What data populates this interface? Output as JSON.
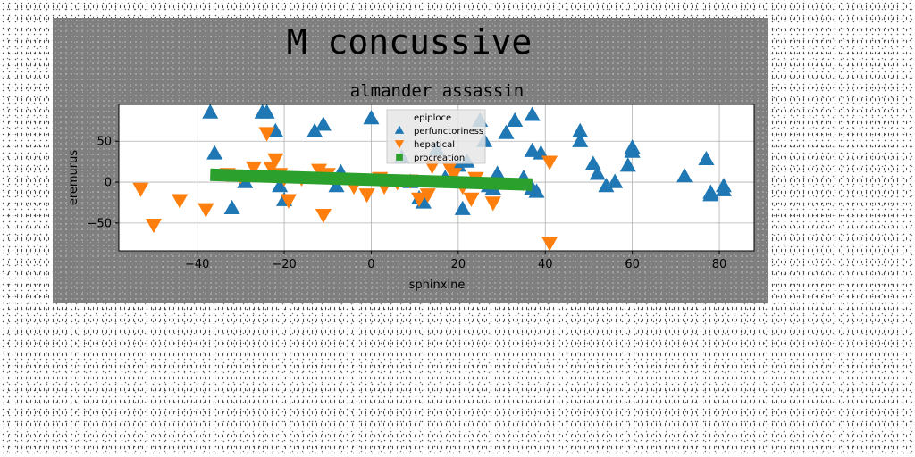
{
  "chart_data": {
    "type": "scatter",
    "suptitle": "M concussive",
    "title": "almander assassin",
    "xlabel": "sphinxine",
    "ylabel": "eremurus",
    "xlim": [
      -58,
      88
    ],
    "ylim": [
      -84,
      95
    ],
    "xticks": [
      -40,
      -20,
      0,
      20,
      40,
      60,
      80
    ],
    "yticks": [
      -50,
      0,
      50
    ],
    "grid": true,
    "legend_position": "upper center",
    "series": [
      {
        "name": "epiploce",
        "marker": "none",
        "color": "",
        "points": []
      },
      {
        "name": "perfunctoriness",
        "marker": "triangle-up",
        "color": "#1f77b4",
        "points": [
          [
            -37,
            85
          ],
          [
            -36,
            35
          ],
          [
            -29,
            0
          ],
          [
            -25,
            85
          ],
          [
            -24,
            85
          ],
          [
            -22,
            62
          ],
          [
            -21,
            -5
          ],
          [
            -20,
            -22
          ],
          [
            -32,
            -32
          ],
          [
            -13,
            62
          ],
          [
            -11,
            70
          ],
          [
            -8,
            -5
          ],
          [
            -7,
            12
          ],
          [
            0,
            78
          ],
          [
            7,
            30
          ],
          [
            9,
            0
          ],
          [
            11,
            -20
          ],
          [
            12,
            -25
          ],
          [
            15,
            40
          ],
          [
            17,
            5
          ],
          [
            20,
            20
          ],
          [
            21,
            -33
          ],
          [
            22,
            25
          ],
          [
            25,
            75
          ],
          [
            26,
            50
          ],
          [
            27,
            -5
          ],
          [
            28,
            -8
          ],
          [
            29,
            10
          ],
          [
            30,
            0
          ],
          [
            31,
            60
          ],
          [
            33,
            75
          ],
          [
            35,
            5
          ],
          [
            37,
            82
          ],
          [
            37,
            38
          ],
          [
            37,
            -8
          ],
          [
            38,
            -12
          ],
          [
            39,
            35
          ],
          [
            48,
            62
          ],
          [
            48,
            50
          ],
          [
            51,
            22
          ],
          [
            52,
            10
          ],
          [
            54,
            -5
          ],
          [
            56,
            0
          ],
          [
            59,
            20
          ],
          [
            60,
            42
          ],
          [
            60,
            37
          ],
          [
            72,
            7
          ],
          [
            77,
            28
          ],
          [
            78,
            -13
          ],
          [
            78,
            -16
          ],
          [
            81,
            -5
          ],
          [
            81,
            -10
          ]
        ]
      },
      {
        "name": "hepatical",
        "marker": "triangle-down",
        "color": "#ff7f0e",
        "points": [
          [
            -53,
            -8
          ],
          [
            -50,
            -52
          ],
          [
            -44,
            -22
          ],
          [
            -38,
            -33
          ],
          [
            -33,
            10
          ],
          [
            -30,
            8
          ],
          [
            -27,
            18
          ],
          [
            -24,
            60
          ],
          [
            -23,
            18
          ],
          [
            -22,
            28
          ],
          [
            -21,
            10
          ],
          [
            -20,
            5
          ],
          [
            -19,
            -22
          ],
          [
            -16,
            5
          ],
          [
            -12,
            15
          ],
          [
            -11,
            -40
          ],
          [
            -10,
            10
          ],
          [
            -4,
            -5
          ],
          [
            -1,
            -15
          ],
          [
            2,
            5
          ],
          [
            3,
            -5
          ],
          [
            6,
            0
          ],
          [
            9,
            2
          ],
          [
            11,
            -20
          ],
          [
            13,
            -15
          ],
          [
            14,
            20
          ],
          [
            18,
            18
          ],
          [
            19,
            10
          ],
          [
            21,
            -5
          ],
          [
            23,
            -20
          ],
          [
            24,
            5
          ],
          [
            28,
            -25
          ],
          [
            41,
            25
          ],
          [
            41,
            -74
          ]
        ]
      },
      {
        "name": "procreation",
        "marker": "square",
        "color": "#2ca02c",
        "line": {
          "x": [
            -37,
            37
          ],
          "y": [
            9,
            -3
          ]
        },
        "points": []
      }
    ]
  }
}
